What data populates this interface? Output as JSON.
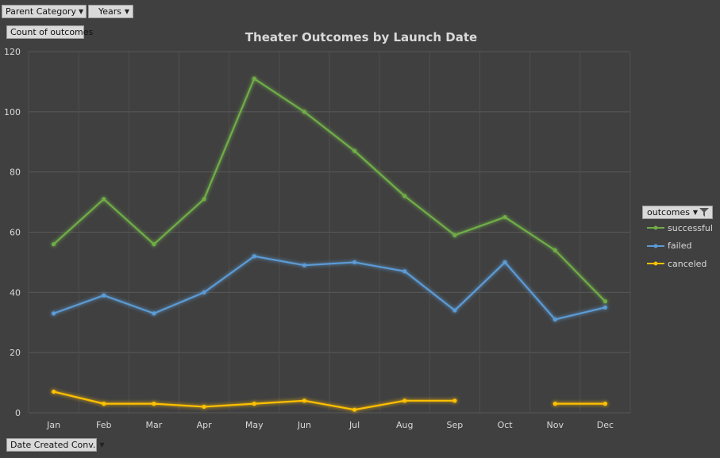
{
  "pivot": {
    "parent_category": "Parent Category",
    "years": "Years",
    "count_field": "Count of outcomes",
    "date_field": "Date Created Conv.",
    "legend_field": "outcomes"
  },
  "chart_data": {
    "type": "line",
    "title": "Theater Outcomes by Launch Date",
    "xlabel": "",
    "ylabel": "",
    "categories": [
      "Jan",
      "Feb",
      "Mar",
      "Apr",
      "May",
      "Jun",
      "Jul",
      "Aug",
      "Sep",
      "Oct",
      "Nov",
      "Dec"
    ],
    "ylim": [
      0,
      120
    ],
    "yticks": [
      0,
      20,
      40,
      60,
      80,
      100,
      120
    ],
    "grid": true,
    "legend_position": "right",
    "series": [
      {
        "name": "successful",
        "color": "#70ad47",
        "values": [
          56,
          71,
          56,
          71,
          111,
          100,
          87,
          72,
          59,
          65,
          54,
          37
        ]
      },
      {
        "name": "failed",
        "color": "#5b9bd5",
        "values": [
          33,
          39,
          33,
          40,
          52,
          49,
          50,
          47,
          34,
          50,
          31,
          35
        ]
      },
      {
        "name": "canceled",
        "color": "#ffc000",
        "values": [
          7,
          3,
          3,
          2,
          3,
          4,
          1,
          4,
          4,
          null,
          3,
          3
        ]
      }
    ]
  }
}
